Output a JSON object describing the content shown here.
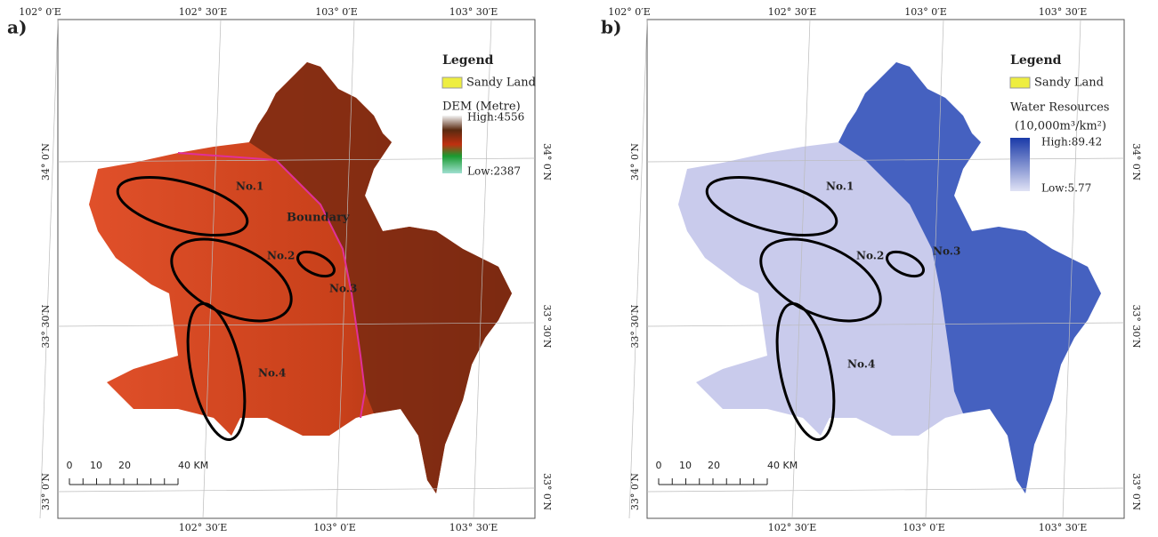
{
  "panels": [
    {
      "label": "a)",
      "top_labels": [
        "102° 0′E",
        "102° 30′E",
        "103° 0′E",
        "103° 30′E"
      ],
      "bottom_labels": [
        "102° 30′E",
        "103° 0′E",
        "103° 30′E"
      ],
      "left_labels": [
        "34° 0′N",
        "33° 30′N",
        "33° 0′N"
      ],
      "right_labels": [
        "34° 0′N",
        "33° 30′N",
        "33° 0′N"
      ],
      "legend": {
        "title": "Legend",
        "sandy": "Sandy Land",
        "layer": [
          "DEM (Metre)"
        ],
        "high": "High:4556",
        "low": "Low:2387"
      },
      "areas": [
        "No.1",
        "No.2",
        "No.3",
        "No.4"
      ],
      "boundary_label": "Boundary",
      "scale": [
        "0",
        "10",
        "20",
        "40 KM"
      ]
    },
    {
      "label": "b)",
      "top_labels": [
        "102° 0′E",
        "102° 30′E",
        "103° 0′E",
        "103° 30′E"
      ],
      "bottom_labels": [
        "102° 30′E",
        "103° 0′E",
        "103° 30′E"
      ],
      "left_labels": [
        "34° 0′N",
        "33° 30′N",
        "33° 0′N"
      ],
      "right_labels": [
        "34° 0′N",
        "33° 30′N",
        "33° 0′N"
      ],
      "legend": {
        "title": "Legend",
        "sandy": "Sandy Land",
        "layer": [
          "Water Resources",
          "(10,000m³/km²)"
        ],
        "high": "High:89.42",
        "low": "Low:5.77"
      },
      "areas": [
        "No.1",
        "No.2",
        "No.3",
        "No.4"
      ],
      "scale": [
        "0",
        "10",
        "20",
        "40 KM"
      ]
    }
  ]
}
